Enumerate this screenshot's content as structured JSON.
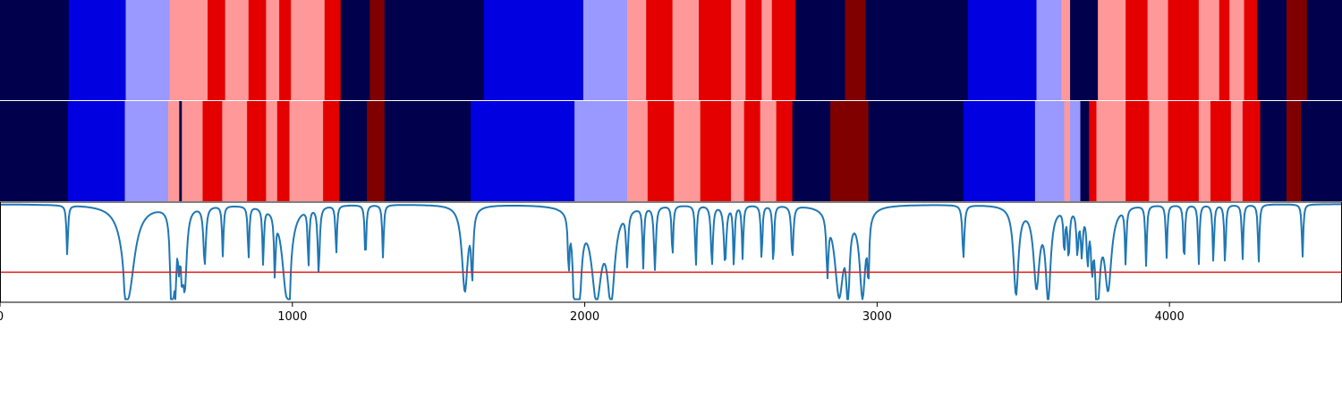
{
  "chart_data": {
    "type": "heatmap",
    "x_range": [
      0,
      4590
    ],
    "x_ticks": [
      0,
      1000,
      2000,
      3000,
      4000
    ],
    "x_tick_labels": [
      "0",
      "1000",
      "2000",
      "3000",
      "4000"
    ],
    "colors": {
      "0": "#00004c",
      "1": "#0000e0",
      "2": "#9999ff",
      "3": "#ff9999",
      "4": "#e50000",
      "5": "#800000",
      "line": "#1f77b4",
      "threshold": "#e31a1c"
    },
    "rows": [
      {
        "segments": [
          [
            0,
            235,
            0
          ],
          [
            235,
            430,
            1
          ],
          [
            430,
            580,
            2
          ],
          [
            580,
            710,
            3
          ],
          [
            710,
            770,
            4
          ],
          [
            770,
            850,
            3
          ],
          [
            850,
            910,
            4
          ],
          [
            910,
            955,
            3
          ],
          [
            955,
            995,
            4
          ],
          [
            995,
            1110,
            3
          ],
          [
            1110,
            1165,
            4
          ],
          [
            1165,
            1265,
            0
          ],
          [
            1265,
            1315,
            5
          ],
          [
            1315,
            1655,
            0
          ],
          [
            1655,
            1995,
            1
          ],
          [
            1995,
            2145,
            2
          ],
          [
            2145,
            2210,
            3
          ],
          [
            2210,
            2300,
            4
          ],
          [
            2300,
            2390,
            3
          ],
          [
            2390,
            2500,
            4
          ],
          [
            2500,
            2550,
            3
          ],
          [
            2550,
            2605,
            4
          ],
          [
            2605,
            2640,
            3
          ],
          [
            2640,
            2720,
            4
          ],
          [
            2720,
            2890,
            0
          ],
          [
            2890,
            2960,
            5
          ],
          [
            2960,
            3310,
            0
          ],
          [
            3310,
            3545,
            1
          ],
          [
            3545,
            3630,
            2
          ],
          [
            3630,
            3660,
            3
          ],
          [
            3660,
            3755,
            0
          ],
          [
            3755,
            3850,
            3
          ],
          [
            3850,
            3925,
            4
          ],
          [
            3925,
            3995,
            3
          ],
          [
            3995,
            4100,
            4
          ],
          [
            4100,
            4170,
            3
          ],
          [
            4170,
            4205,
            4
          ],
          [
            4205,
            4255,
            3
          ],
          [
            4255,
            4300,
            4
          ],
          [
            4300,
            4400,
            0
          ],
          [
            4400,
            4470,
            5
          ],
          [
            4470,
            4590,
            0
          ]
        ]
      },
      {
        "segments": [
          [
            0,
            232,
            0
          ],
          [
            232,
            427,
            1
          ],
          [
            427,
            575,
            2
          ],
          [
            575,
            613,
            3
          ],
          [
            613,
            622,
            0
          ],
          [
            622,
            693,
            3
          ],
          [
            693,
            760,
            4
          ],
          [
            760,
            845,
            3
          ],
          [
            845,
            910,
            4
          ],
          [
            910,
            948,
            3
          ],
          [
            948,
            990,
            4
          ],
          [
            990,
            1105,
            3
          ],
          [
            1105,
            1160,
            4
          ],
          [
            1160,
            1255,
            0
          ],
          [
            1255,
            1315,
            5
          ],
          [
            1315,
            1610,
            0
          ],
          [
            1610,
            1965,
            1
          ],
          [
            1965,
            2145,
            2
          ],
          [
            2145,
            2215,
            3
          ],
          [
            2215,
            2305,
            4
          ],
          [
            2305,
            2395,
            3
          ],
          [
            2395,
            2500,
            4
          ],
          [
            2500,
            2545,
            3
          ],
          [
            2545,
            2600,
            4
          ],
          [
            2600,
            2655,
            3
          ],
          [
            2655,
            2710,
            4
          ],
          [
            2710,
            2840,
            0
          ],
          [
            2840,
            2970,
            5
          ],
          [
            2970,
            3295,
            0
          ],
          [
            3295,
            3540,
            1
          ],
          [
            3540,
            3640,
            2
          ],
          [
            3640,
            3660,
            3
          ],
          [
            3660,
            3695,
            2
          ],
          [
            3695,
            3725,
            0
          ],
          [
            3725,
            3750,
            4
          ],
          [
            3750,
            3850,
            3
          ],
          [
            3850,
            3930,
            4
          ],
          [
            3930,
            3995,
            3
          ],
          [
            3995,
            4100,
            4
          ],
          [
            4100,
            4140,
            3
          ],
          [
            4140,
            4210,
            4
          ],
          [
            4210,
            4250,
            3
          ],
          [
            4250,
            4310,
            4
          ],
          [
            4310,
            4400,
            0
          ],
          [
            4400,
            4450,
            5
          ],
          [
            4450,
            4590,
            0
          ]
        ]
      }
    ],
    "line_panel": {
      "y_range": [
        0,
        1
      ],
      "baseline": 0.98,
      "threshold_y": 0.3,
      "dips": [
        [
          230,
          0.48,
          3
        ],
        [
          430,
          0.45,
          4
        ],
        [
          440,
          0.12,
          25
        ],
        [
          585,
          0.45,
          4
        ],
        [
          590,
          0.18,
          6
        ],
        [
          600,
          0.38,
          4
        ],
        [
          612,
          0.57,
          4
        ],
        [
          622,
          0.55,
          4
        ],
        [
          632,
          0.22,
          8
        ],
        [
          700,
          0.4,
          5
        ],
        [
          762,
          0.48,
          3
        ],
        [
          850,
          0.45,
          3
        ],
        [
          900,
          0.42,
          3
        ],
        [
          940,
          0.38,
          3
        ],
        [
          980,
          0.1,
          18
        ],
        [
          990,
          0.5,
          3
        ],
        [
          1055,
          0.4,
          3
        ],
        [
          1090,
          0.32,
          4
        ],
        [
          1150,
          0.5,
          3
        ],
        [
          1250,
          0.42,
          3
        ],
        [
          1310,
          0.45,
          3
        ],
        [
          1590,
          0.12,
          12
        ],
        [
          1615,
          0.36,
          4
        ],
        [
          1945,
          0.45,
          3
        ],
        [
          1965,
          0.12,
          6
        ],
        [
          1980,
          0.08,
          10
        ],
        [
          2040,
          0.1,
          20
        ],
        [
          2090,
          0.1,
          15
        ],
        [
          2145,
          0.45,
          4
        ],
        [
          2200,
          0.38,
          3
        ],
        [
          2240,
          0.35,
          4
        ],
        [
          2300,
          0.45,
          3
        ],
        [
          2380,
          0.36,
          3
        ],
        [
          2435,
          0.38,
          4
        ],
        [
          2480,
          0.4,
          5
        ],
        [
          2510,
          0.37,
          3
        ],
        [
          2540,
          0.45,
          3
        ],
        [
          2605,
          0.42,
          3
        ],
        [
          2645,
          0.37,
          3
        ],
        [
          2710,
          0.45,
          4
        ],
        [
          2830,
          0.4,
          4
        ],
        [
          2870,
          0.1,
          18
        ],
        [
          2900,
          0.18,
          6
        ],
        [
          2950,
          0.1,
          12
        ],
        [
          2970,
          0.4,
          3
        ],
        [
          3295,
          0.45,
          4
        ],
        [
          3475,
          0.1,
          10
        ],
        [
          3545,
          0.2,
          12
        ],
        [
          3585,
          0.08,
          10
        ],
        [
          3640,
          0.55,
          3
        ],
        [
          3655,
          0.5,
          4
        ],
        [
          3685,
          0.55,
          4
        ],
        [
          3700,
          0.55,
          4
        ],
        [
          3720,
          0.5,
          4
        ],
        [
          3735,
          0.5,
          4
        ],
        [
          3750,
          0.57,
          3
        ],
        [
          3755,
          0.2,
          10
        ],
        [
          3790,
          0.18,
          14
        ],
        [
          3850,
          0.42,
          3
        ],
        [
          3920,
          0.38,
          3
        ],
        [
          3990,
          0.45,
          3
        ],
        [
          4050,
          0.38,
          3
        ],
        [
          4100,
          0.38,
          3
        ],
        [
          4150,
          0.4,
          3
        ],
        [
          4190,
          0.38,
          3
        ],
        [
          4250,
          0.43,
          3
        ],
        [
          4305,
          0.4,
          3
        ],
        [
          4455,
          0.45,
          3
        ]
      ]
    }
  }
}
